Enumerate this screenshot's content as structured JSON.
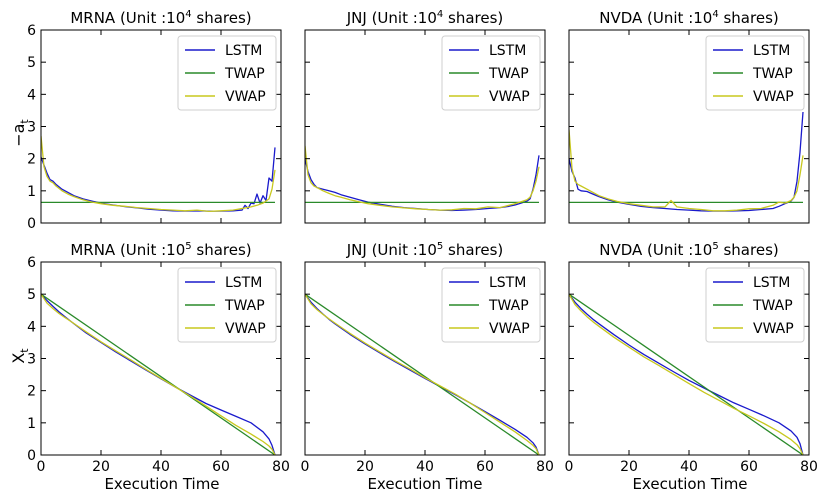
{
  "colors": {
    "LSTM": "#1a1acc",
    "TWAP": "#2a8a2a",
    "VWAP": "#c8c81e"
  },
  "figure": {
    "xlabel": "Execution Time",
    "top_ylabel": "−a",
    "top_ylabel_sub": "t",
    "bottom_ylabel": "X",
    "bottom_ylabel_sub": "t"
  },
  "chart_data": [
    {
      "type": "line",
      "row": 0,
      "col": 0,
      "title": "MRNA  (Unit :10",
      "title_exp": "4",
      "title_suffix": " shares)",
      "xlim": [
        0,
        80
      ],
      "ylim": [
        0,
        6
      ],
      "xticks": [
        0,
        20,
        40,
        60,
        80
      ],
      "yticks": [
        0,
        1,
        2,
        3,
        4,
        5,
        6
      ],
      "show_xticklabels": false,
      "show_yticklabels": true,
      "legend": "upper right",
      "series": [
        {
          "name": "LSTM",
          "x": [
            0,
            1,
            2,
            3,
            4,
            5,
            7,
            9,
            11,
            14,
            17,
            20,
            24,
            28,
            32,
            36,
            40,
            44,
            48,
            52,
            56,
            60,
            64,
            67,
            68,
            69,
            70,
            71,
            72,
            73,
            74,
            75,
            76,
            77,
            78
          ],
          "y": [
            2.05,
            1.8,
            1.55,
            1.35,
            1.3,
            1.2,
            1.05,
            0.95,
            0.85,
            0.75,
            0.68,
            0.62,
            0.56,
            0.51,
            0.47,
            0.43,
            0.4,
            0.38,
            0.37,
            0.38,
            0.37,
            0.37,
            0.38,
            0.4,
            0.55,
            0.45,
            0.62,
            0.6,
            0.9,
            0.62,
            0.85,
            0.7,
            1.4,
            1.3,
            2.35
          ]
        },
        {
          "name": "TWAP",
          "x": [
            0,
            78
          ],
          "y": [
            0.64,
            0.64
          ]
        },
        {
          "name": "VWAP",
          "x": [
            0,
            1,
            2,
            3,
            4,
            5,
            7,
            9,
            11,
            14,
            17,
            20,
            24,
            28,
            32,
            36,
            40,
            44,
            48,
            52,
            56,
            60,
            64,
            67,
            70,
            72,
            74,
            76,
            77,
            78
          ],
          "y": [
            2.7,
            1.75,
            1.45,
            1.3,
            1.25,
            1.15,
            1.0,
            0.9,
            0.82,
            0.72,
            0.65,
            0.6,
            0.55,
            0.52,
            0.48,
            0.45,
            0.42,
            0.4,
            0.38,
            0.4,
            0.36,
            0.38,
            0.4,
            0.45,
            0.5,
            0.55,
            0.62,
            0.75,
            1.05,
            1.65
          ]
        }
      ]
    },
    {
      "type": "line",
      "row": 0,
      "col": 1,
      "title": "JNJ  (Unit :10",
      "title_exp": "4",
      "title_suffix": " shares)",
      "xlim": [
        0,
        80
      ],
      "ylim": [
        0,
        6
      ],
      "xticks": [
        0,
        20,
        40,
        60,
        80
      ],
      "yticks": [
        0,
        1,
        2,
        3,
        4,
        5,
        6
      ],
      "show_xticklabels": false,
      "show_yticklabels": false,
      "legend": "upper right",
      "series": [
        {
          "name": "LSTM",
          "x": [
            0,
            1,
            2,
            3,
            4,
            6,
            8,
            10,
            12,
            15,
            18,
            21,
            25,
            29,
            33,
            37,
            41,
            45,
            49,
            53,
            57,
            61,
            65,
            68,
            70,
            72,
            74,
            75,
            76,
            77,
            78
          ],
          "y": [
            2.0,
            1.6,
            1.35,
            1.2,
            1.1,
            1.05,
            1.0,
            0.95,
            0.88,
            0.8,
            0.72,
            0.65,
            0.58,
            0.52,
            0.48,
            0.45,
            0.42,
            0.4,
            0.39,
            0.4,
            0.42,
            0.45,
            0.48,
            0.52,
            0.56,
            0.62,
            0.68,
            0.75,
            1.05,
            1.5,
            2.1
          ]
        },
        {
          "name": "TWAP",
          "x": [
            0,
            78
          ],
          "y": [
            0.64,
            0.64
          ]
        },
        {
          "name": "VWAP",
          "x": [
            0,
            1,
            2,
            3,
            4,
            6,
            8,
            10,
            12,
            15,
            18,
            21,
            25,
            29,
            33,
            37,
            41,
            45,
            49,
            53,
            57,
            61,
            65,
            68,
            70,
            72,
            74,
            75,
            76,
            77,
            78
          ],
          "y": [
            2.4,
            1.5,
            1.25,
            1.15,
            1.1,
            1.0,
            0.92,
            0.85,
            0.8,
            0.72,
            0.66,
            0.6,
            0.55,
            0.5,
            0.47,
            0.44,
            0.42,
            0.4,
            0.41,
            0.45,
            0.44,
            0.5,
            0.48,
            0.55,
            0.6,
            0.66,
            0.72,
            0.8,
            1.0,
            1.3,
            1.75
          ]
        }
      ]
    },
    {
      "type": "line",
      "row": 0,
      "col": 2,
      "title": "NVDA  (Unit :10",
      "title_exp": "4",
      "title_suffix": " shares)",
      "xlim": [
        0,
        80
      ],
      "ylim": [
        0,
        6
      ],
      "xticks": [
        0,
        20,
        40,
        60,
        80
      ],
      "yticks": [
        0,
        1,
        2,
        3,
        4,
        5,
        6
      ],
      "show_xticklabels": false,
      "show_yticklabels": false,
      "legend": "upper right",
      "series": [
        {
          "name": "LSTM",
          "x": [
            0,
            1,
            2,
            3,
            4,
            6,
            8,
            10,
            13,
            16,
            20,
            24,
            28,
            32,
            36,
            40,
            44,
            48,
            52,
            56,
            60,
            64,
            68,
            70,
            72,
            74,
            75,
            76,
            77,
            78
          ],
          "y": [
            2.0,
            1.6,
            1.4,
            1.05,
            1.0,
            0.98,
            0.9,
            0.82,
            0.72,
            0.65,
            0.58,
            0.52,
            0.48,
            0.45,
            0.42,
            0.4,
            0.38,
            0.37,
            0.37,
            0.38,
            0.39,
            0.42,
            0.45,
            0.52,
            0.6,
            0.68,
            0.8,
            1.3,
            2.2,
            3.45
          ]
        },
        {
          "name": "TWAP",
          "x": [
            0,
            78
          ],
          "y": [
            0.64,
            0.64
          ]
        },
        {
          "name": "VWAP",
          "x": [
            0,
            1,
            2,
            3,
            4,
            6,
            8,
            10,
            13,
            16,
            20,
            24,
            28,
            32,
            34,
            36,
            40,
            44,
            48,
            52,
            56,
            60,
            64,
            68,
            70,
            72,
            74,
            75,
            76,
            77,
            78
          ],
          "y": [
            2.9,
            1.7,
            1.3,
            1.2,
            1.15,
            1.05,
            0.95,
            0.85,
            0.75,
            0.67,
            0.6,
            0.55,
            0.5,
            0.5,
            0.7,
            0.5,
            0.45,
            0.42,
            0.38,
            0.38,
            0.4,
            0.44,
            0.45,
            0.55,
            0.65,
            0.62,
            0.7,
            0.8,
            1.0,
            1.5,
            2.1
          ]
        }
      ]
    },
    {
      "type": "line",
      "row": 1,
      "col": 0,
      "title": "MRNA  (Unit :10",
      "title_exp": "5",
      "title_suffix": " shares)",
      "xlim": [
        0,
        80
      ],
      "ylim": [
        0,
        6
      ],
      "xticks": [
        0,
        20,
        40,
        60,
        80
      ],
      "yticks": [
        0,
        1,
        2,
        3,
        4,
        5,
        6
      ],
      "show_xticklabels": true,
      "show_yticklabels": true,
      "legend": "upper right",
      "series": [
        {
          "name": "LSTM",
          "x": [
            0,
            2,
            4,
            6,
            8,
            10,
            15,
            20,
            25,
            30,
            35,
            40,
            45,
            50,
            55,
            60,
            65,
            70,
            74,
            76,
            77,
            78
          ],
          "y": [
            5.0,
            4.8,
            4.62,
            4.45,
            4.3,
            4.15,
            3.8,
            3.5,
            3.2,
            2.92,
            2.64,
            2.37,
            2.1,
            1.85,
            1.6,
            1.4,
            1.2,
            1.0,
            0.72,
            0.5,
            0.3,
            0.0
          ]
        },
        {
          "name": "TWAP",
          "x": [
            0,
            78
          ],
          "y": [
            5.0,
            0.0
          ]
        },
        {
          "name": "VWAP",
          "x": [
            0,
            2,
            4,
            6,
            8,
            10,
            15,
            20,
            25,
            30,
            35,
            40,
            45,
            50,
            55,
            60,
            65,
            70,
            74,
            76,
            77,
            78
          ],
          "y": [
            5.0,
            4.72,
            4.55,
            4.4,
            4.27,
            4.15,
            3.83,
            3.52,
            3.23,
            2.95,
            2.66,
            2.38,
            2.1,
            1.82,
            1.52,
            1.22,
            0.92,
            0.65,
            0.42,
            0.28,
            0.18,
            0.0
          ]
        }
      ]
    },
    {
      "type": "line",
      "row": 1,
      "col": 1,
      "title": "JNJ  (Unit :10",
      "title_exp": "5",
      "title_suffix": " shares)",
      "xlim": [
        0,
        80
      ],
      "ylim": [
        0,
        6
      ],
      "xticks": [
        0,
        20,
        40,
        60,
        80
      ],
      "yticks": [
        0,
        1,
        2,
        3,
        4,
        5,
        6
      ],
      "show_xticklabels": true,
      "show_yticklabels": false,
      "legend": "upper right",
      "series": [
        {
          "name": "LSTM",
          "x": [
            0,
            2,
            4,
            6,
            8,
            10,
            15,
            20,
            25,
            30,
            35,
            40,
            45,
            50,
            55,
            60,
            65,
            70,
            74,
            76,
            77,
            78
          ],
          "y": [
            5.0,
            4.75,
            4.55,
            4.38,
            4.22,
            4.08,
            3.75,
            3.45,
            3.17,
            2.9,
            2.64,
            2.38,
            2.13,
            1.88,
            1.62,
            1.35,
            1.08,
            0.8,
            0.55,
            0.38,
            0.25,
            0.0
          ]
        },
        {
          "name": "TWAP",
          "x": [
            0,
            78
          ],
          "y": [
            5.0,
            0.0
          ]
        },
        {
          "name": "VWAP",
          "x": [
            0,
            2,
            4,
            6,
            8,
            10,
            15,
            20,
            25,
            30,
            35,
            40,
            45,
            50,
            55,
            60,
            65,
            70,
            74,
            76,
            77,
            78
          ],
          "y": [
            5.0,
            4.7,
            4.52,
            4.37,
            4.23,
            4.1,
            3.78,
            3.48,
            3.2,
            2.93,
            2.67,
            2.4,
            2.15,
            1.9,
            1.62,
            1.32,
            1.02,
            0.72,
            0.45,
            0.3,
            0.2,
            0.0
          ]
        }
      ]
    },
    {
      "type": "line",
      "row": 1,
      "col": 2,
      "title": "NVDA  (Unit :10",
      "title_exp": "5",
      "title_suffix": " shares)",
      "xlim": [
        0,
        80
      ],
      "ylim": [
        0,
        6
      ],
      "xticks": [
        0,
        20,
        40,
        60,
        80
      ],
      "yticks": [
        0,
        1,
        2,
        3,
        4,
        5,
        6
      ],
      "show_xticklabels": true,
      "show_yticklabels": false,
      "legend": "upper right",
      "series": [
        {
          "name": "LSTM",
          "x": [
            0,
            2,
            4,
            6,
            8,
            10,
            15,
            20,
            25,
            30,
            35,
            40,
            45,
            50,
            55,
            60,
            65,
            70,
            74,
            76,
            77,
            78
          ],
          "y": [
            5.0,
            4.75,
            4.55,
            4.38,
            4.22,
            4.08,
            3.74,
            3.42,
            3.12,
            2.85,
            2.58,
            2.32,
            2.08,
            1.85,
            1.62,
            1.42,
            1.22,
            1.0,
            0.75,
            0.55,
            0.35,
            0.0
          ]
        },
        {
          "name": "TWAP",
          "x": [
            0,
            78
          ],
          "y": [
            5.0,
            0.0
          ]
        },
        {
          "name": "VWAP",
          "x": [
            0,
            2,
            4,
            6,
            8,
            10,
            15,
            20,
            25,
            30,
            35,
            40,
            45,
            50,
            55,
            60,
            65,
            70,
            74,
            76,
            77,
            78
          ],
          "y": [
            5.0,
            4.68,
            4.48,
            4.3,
            4.14,
            4.0,
            3.66,
            3.35,
            3.05,
            2.78,
            2.5,
            2.22,
            1.95,
            1.7,
            1.45,
            1.22,
            0.98,
            0.72,
            0.48,
            0.32,
            0.2,
            0.0
          ]
        }
      ]
    }
  ]
}
